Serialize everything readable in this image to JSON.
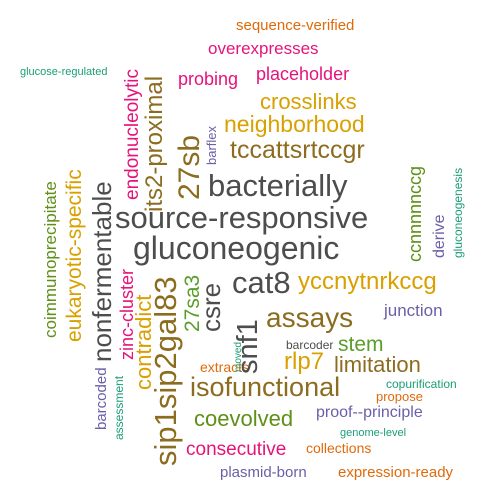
{
  "colors": {
    "gray": "#4d4d4d",
    "brown": "#8c6d1f",
    "olive": "#5e8f16",
    "green": "#5a9e2a",
    "gold": "#d9a000",
    "magenta": "#e6137a",
    "orange": "#e06a0a",
    "purple": "#6a5fa8",
    "teal": "#1b9e77"
  },
  "words": {
    "sequence_verified": "sequence-verified",
    "overexpresses": "overexpresses",
    "glucose_regulated": "glucose-regulated",
    "probing": "probing",
    "placeholder": "placeholder",
    "crosslinks": "crosslinks",
    "neighborhood": "neighborhood",
    "tccattsrtccgr": "tccattsrtccgr",
    "bacterially": "bacterially",
    "source_responsive": "source-responsive",
    "gluconeogenic": "gluconeogenic",
    "cat8": "cat8",
    "yccnytnrkccg": "yccnytnrkccg",
    "assays": "assays",
    "junction": "junction",
    "stem": "stem",
    "barcoder": "barcoder",
    "rlp7": "rlp7",
    "limitation": "limitation",
    "extracts": "extracts",
    "moved": "moved",
    "isofunctional": "isofunctional",
    "copurification": "copurification",
    "propose": "propose",
    "coevolved": "coevolved",
    "proof_principle": "proof--principle",
    "genome_level": "genome-level",
    "consecutive": "consecutive",
    "collections": "collections",
    "plasmid_born": "plasmid-born",
    "expression_ready": "expression-ready",
    "coimmunoprecipitate": "coimmunoprecipitate",
    "eukaryotic_specific": "eukaryotic-specific",
    "nonfermentable": "nonfermentable",
    "endonucleolytic": "endonucleolytic",
    "its2_proximal": "its2-proximal",
    "sb27": "27sb",
    "barflex": "barflex",
    "csre": "csre",
    "sa3_27": "27sa3",
    "zinc_cluster": "zinc-cluster",
    "contradict": "contradict",
    "sip1sip2gal83": "sip1sip2gal83",
    "snf1": "snf1",
    "barcoded": "barcoded",
    "assessment": "assessment",
    "ccnnnnnccg": "ccnnnnnccg",
    "derive": "derive",
    "gluconeogenesis": "gluconeogenesis"
  }
}
